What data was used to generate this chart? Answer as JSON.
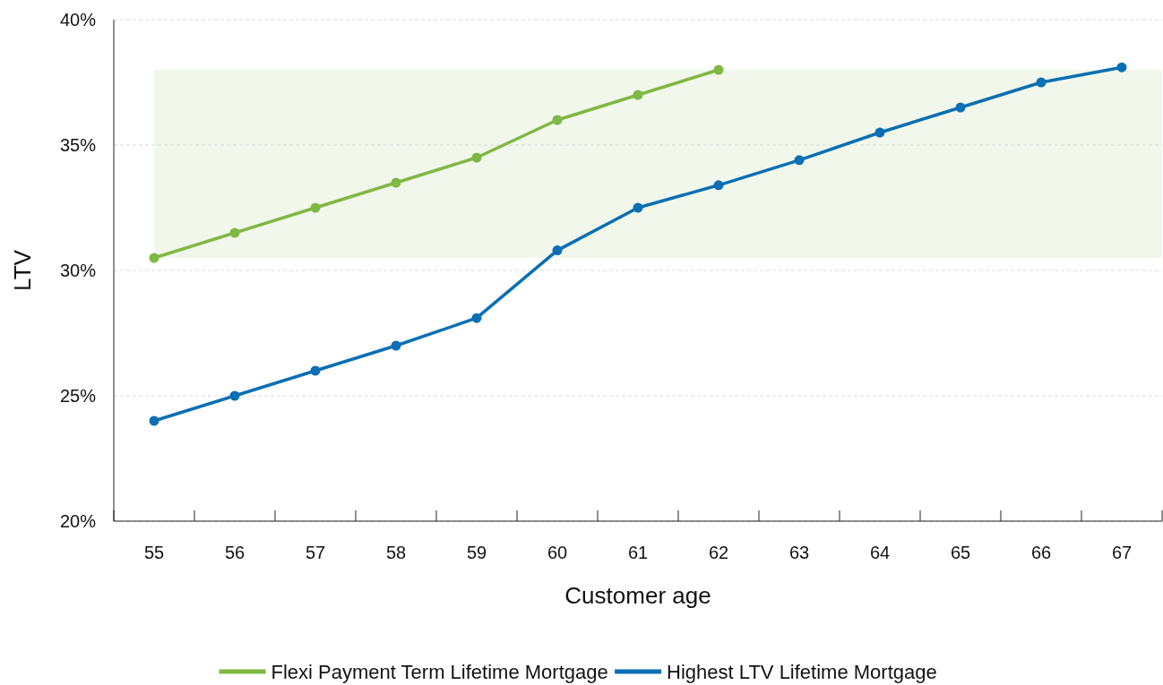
{
  "chart_data": {
    "type": "line",
    "xlabel": "Customer age",
    "ylabel": "LTV",
    "categories": [
      "55",
      "56",
      "57",
      "58",
      "59",
      "60",
      "61",
      "62",
      "63",
      "64",
      "65",
      "66",
      "67"
    ],
    "series": [
      {
        "name": "Flexi Payment Term Lifetime Mortgage",
        "color": "#7fb843",
        "values": [
          30.5,
          31.5,
          32.5,
          33.5,
          34.5,
          36,
          37,
          38,
          null,
          null,
          null,
          null,
          null
        ]
      },
      {
        "name": "Highest LTV Lifetime Mortgage",
        "color": "#0a6fb4",
        "values": [
          24,
          25,
          26,
          27,
          28.1,
          30.8,
          32.5,
          33.4,
          34.4,
          35.5,
          36.5,
          37.5,
          38.1
        ]
      }
    ],
    "ylim": [
      20,
      40
    ],
    "yticks": [
      {
        "value": 20,
        "label": "20%"
      },
      {
        "value": 25,
        "label": "25%"
      },
      {
        "value": 30,
        "label": "30%"
      },
      {
        "value": 35,
        "label": "35%"
      },
      {
        "value": 40,
        "label": "40%"
      }
    ],
    "bands": [
      {
        "axis": "y",
        "from": 30.5,
        "to": 38,
        "color": "#f2f7ec"
      }
    ],
    "grid": "y",
    "legend": "bottom",
    "marker": "circle",
    "line_style": "solid"
  }
}
